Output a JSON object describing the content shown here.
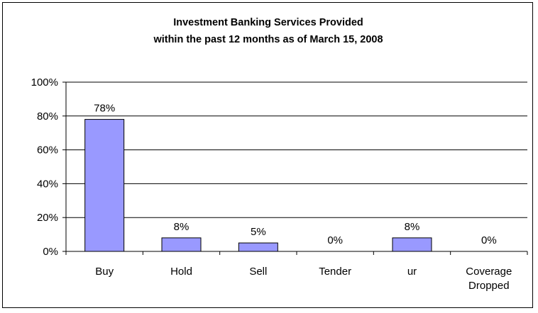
{
  "chart_data": {
    "type": "bar",
    "title_lines": [
      "Investment Banking Services Provided",
      "within the past 12 months as of March 15, 2008"
    ],
    "categories": [
      [
        "Buy"
      ],
      [
        "Hold"
      ],
      [
        "Sell"
      ],
      [
        "Tender"
      ],
      [
        "ur"
      ],
      [
        "Coverage",
        "Dropped"
      ]
    ],
    "values": [
      78,
      8,
      5,
      0,
      8,
      0
    ],
    "data_labels": [
      "78%",
      "8%",
      "5%",
      "0%",
      "8%",
      "0%"
    ],
    "ylim": [
      0,
      100
    ],
    "yticks": [
      0,
      20,
      40,
      60,
      80,
      100
    ],
    "ytick_labels": [
      "0%",
      "20%",
      "40%",
      "60%",
      "80%",
      "100%"
    ],
    "xlabel": "",
    "ylabel": "",
    "grid": true,
    "legend": "none",
    "colors": {
      "bar_fill": "#9999ff",
      "bar_stroke": "#000000",
      "grid": "#000000"
    }
  }
}
